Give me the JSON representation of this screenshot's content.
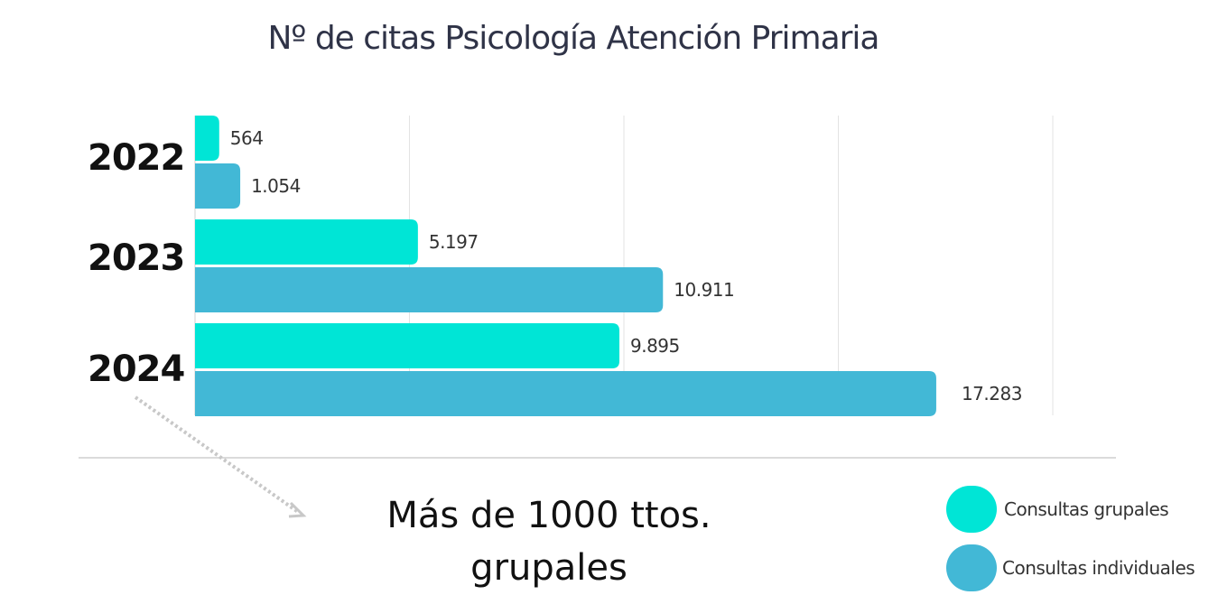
{
  "chart_data": {
    "type": "bar",
    "orientation": "horizontal",
    "title": "Nº de citas Psicología Atención Primaria",
    "categories": [
      "2022",
      "2023",
      "2024"
    ],
    "series": [
      {
        "name": "Consultas grupales",
        "values": [
          564,
          5197,
          9895
        ],
        "labels": [
          "564",
          "5.197",
          "9.895"
        ],
        "color": "#00e5d6"
      },
      {
        "name": "Consultas individuales",
        "values": [
          1054,
          10911,
          17283
        ],
        "labels": [
          "1.054",
          "10.911",
          "17.283"
        ],
        "color": "#42b8d6"
      }
    ],
    "xlim": [
      0,
      20000
    ],
    "grid": true,
    "legend": "bottom-right",
    "annotation": "Más de 1000 ttos. grupales"
  }
}
